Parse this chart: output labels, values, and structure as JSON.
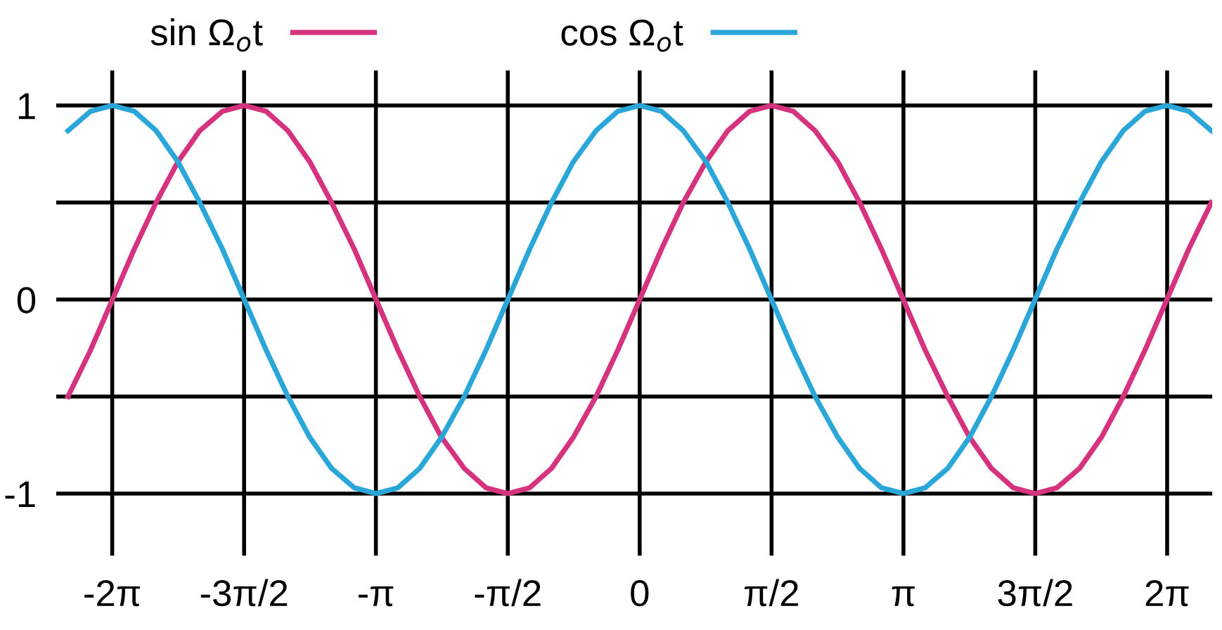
{
  "chart_data": {
    "type": "line",
    "x": [
      -6.81,
      -6.54,
      -6.28,
      -6.02,
      -5.76,
      -5.5,
      -5.24,
      -4.97,
      -4.71,
      -4.45,
      -4.19,
      -3.93,
      -3.67,
      -3.4,
      -3.14,
      -2.88,
      -2.62,
      -2.36,
      -2.09,
      -1.83,
      -1.57,
      -1.31,
      -1.05,
      -0.79,
      -0.52,
      -0.26,
      0,
      0.26,
      0.52,
      0.79,
      1.05,
      1.31,
      1.57,
      1.83,
      2.09,
      2.36,
      2.62,
      2.88,
      3.14,
      3.4,
      3.67,
      3.93,
      4.19,
      4.45,
      4.71,
      4.97,
      5.24,
      5.5,
      5.76,
      6.02,
      6.28,
      6.54,
      6.81
    ],
    "series": [
      {
        "name": "sin Ω$_{o}$t",
        "color": "#d6337f",
        "values": [
          -0.5,
          -0.26,
          0,
          0.26,
          0.5,
          0.71,
          0.87,
          0.97,
          1,
          0.97,
          0.87,
          0.71,
          0.5,
          0.26,
          0,
          -0.26,
          -0.5,
          -0.71,
          -0.87,
          -0.97,
          -1,
          -0.97,
          -0.87,
          -0.71,
          -0.5,
          -0.26,
          0,
          0.26,
          0.5,
          0.71,
          0.87,
          0.97,
          1,
          0.97,
          0.87,
          0.71,
          0.5,
          0.26,
          0,
          -0.26,
          -0.5,
          -0.71,
          -0.87,
          -0.97,
          -1,
          -0.97,
          -0.87,
          -0.71,
          -0.5,
          -0.26,
          0,
          0.26,
          0.5
        ]
      },
      {
        "name": "cos Ω$_{o}$t",
        "color": "#2aa6d8",
        "values": [
          0.87,
          0.97,
          1,
          0.97,
          0.87,
          0.71,
          0.5,
          0.26,
          0,
          -0.26,
          -0.5,
          -0.71,
          -0.87,
          -0.97,
          -1,
          -0.97,
          -0.87,
          -0.71,
          -0.5,
          -0.26,
          0,
          0.26,
          0.5,
          0.71,
          0.87,
          0.97,
          1,
          0.97,
          0.87,
          0.71,
          0.5,
          0.26,
          0,
          -0.26,
          -0.5,
          -0.71,
          -0.87,
          -0.97,
          -1,
          -0.97,
          -0.87,
          -0.71,
          -0.5,
          -0.26,
          0,
          0.26,
          0.5,
          0.71,
          0.87,
          0.97,
          1,
          0.97,
          0.87
        ]
      }
    ],
    "xlim": [
      -6.95,
      6.82
    ],
    "xticks": [
      {
        "value": -6.283,
        "label": "-2π"
      },
      {
        "value": -4.712,
        "label": "-3π/2"
      },
      {
        "value": -3.142,
        "label": "-π"
      },
      {
        "value": -1.571,
        "label": "-π/2"
      },
      {
        "value": 0,
        "label": "0"
      },
      {
        "value": 1.571,
        "label": "π/2"
      },
      {
        "value": 3.142,
        "label": "π"
      },
      {
        "value": 4.712,
        "label": "3π/2"
      },
      {
        "value": 6.283,
        "label": "2π"
      }
    ],
    "ylim": [
      -1.32,
      1.18
    ],
    "yticks": [
      {
        "value": -1,
        "label": "-1"
      },
      {
        "value": -0.5,
        "label": null
      },
      0,
      {
        "value": 0.5,
        "label": null
      },
      1
    ],
    "grid": true,
    "legend": "top",
    "marker": "none",
    "line_style": "solid"
  }
}
